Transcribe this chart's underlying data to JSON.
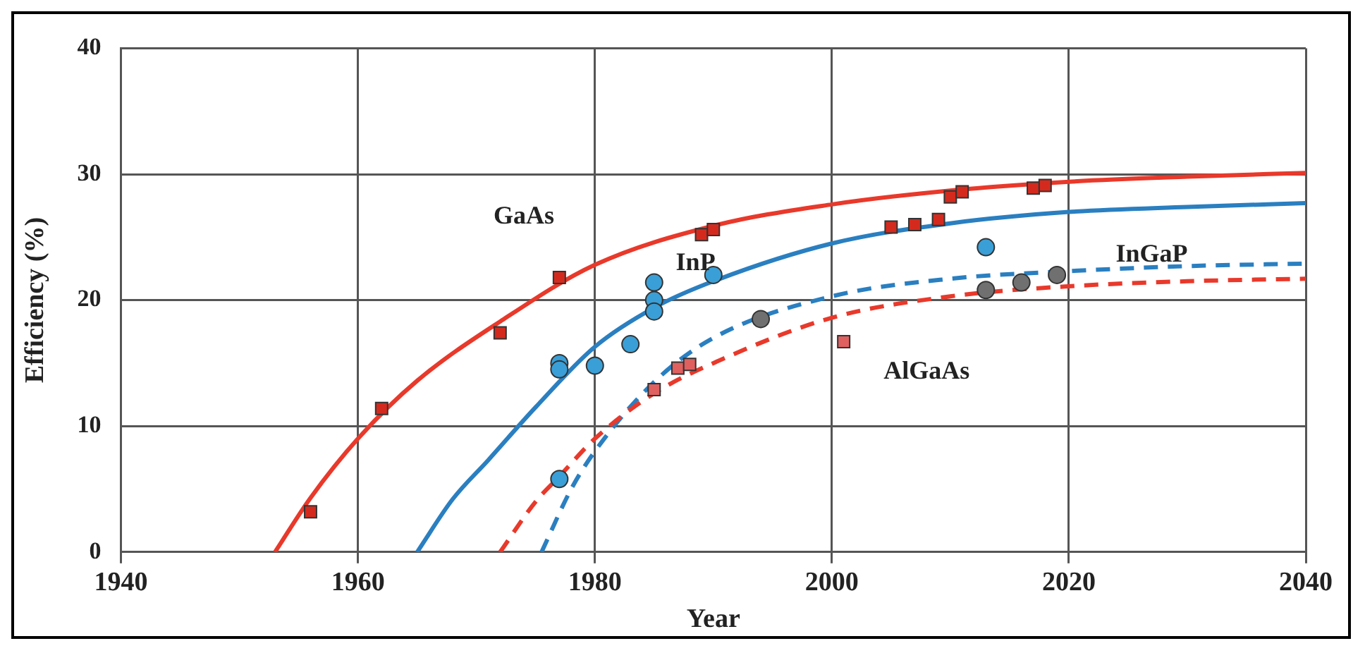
{
  "chart_data": {
    "type": "scatter",
    "xlabel": "Year",
    "ylabel": "Efficiency (%)",
    "xlim": [
      1940,
      2040
    ],
    "xticks": [
      1940,
      1960,
      1980,
      2000,
      2020,
      2040
    ],
    "ylim": [
      0,
      40
    ],
    "yticks": [
      0,
      10,
      20,
      30,
      40
    ],
    "grid": true,
    "legend": false,
    "series": [
      {
        "marker": "square",
        "color": "#d42a1e",
        "x": [
          1956,
          1962,
          1972,
          1977,
          1989,
          1990,
          2005,
          2007,
          2009,
          2010,
          2011,
          2017,
          2018
        ],
        "values": [
          3.2,
          11.4,
          17.4,
          21.8,
          25.2,
          25.6,
          25.8,
          26.0,
          26.4,
          28.2,
          28.6,
          28.9,
          29.1
        ]
      },
      {
        "marker": "circle",
        "color": "#3a9fd6",
        "x": [
          1977,
          1977,
          1977,
          1980,
          1983,
          1985,
          1985,
          1985,
          1990,
          2013
        ],
        "values": [
          5.8,
          15.0,
          14.5,
          14.8,
          16.5,
          21.4,
          20.0,
          19.1,
          22.0,
          24.2
        ]
      },
      {
        "marker": "square",
        "color": "#e06060",
        "x": [
          1985,
          1987,
          1988,
          2001
        ],
        "values": [
          12.9,
          14.6,
          14.9,
          16.7
        ]
      },
      {
        "marker": "circle",
        "color": "#707070",
        "x": [
          1994,
          2013,
          2016,
          2019
        ],
        "values": [
          18.5,
          20.8,
          21.4,
          22.0
        ]
      },
      {
        "type": "line",
        "name": "GaAs",
        "marker": "none",
        "line_style": "solid",
        "color": "#e8392b",
        "x": [
          1953,
          1956,
          1960,
          1965,
          1972,
          1980,
          1990,
          2000,
          2010,
          2020,
          2030,
          2040
        ],
        "values": [
          0,
          4.3,
          9,
          13.6,
          18.3,
          22.8,
          25.9,
          27.6,
          28.7,
          29.4,
          29.8,
          30.1
        ]
      },
      {
        "type": "line",
        "name": "InP",
        "marker": "none",
        "line_style": "solid",
        "color": "#2a7fc0",
        "x": [
          1965,
          1968,
          1971,
          1975,
          1980,
          1985,
          1990,
          2000,
          2010,
          2020,
          2030,
          2040
        ],
        "values": [
          0,
          4.2,
          7.3,
          11.5,
          16.3,
          19.4,
          21.5,
          24.5,
          26.1,
          27,
          27.4,
          27.7
        ]
      },
      {
        "type": "line",
        "name": "AlGaAs",
        "marker": "none",
        "line_style": "dashed",
        "color": "#e8392b",
        "x": [
          1972,
          1975,
          1977,
          1980,
          1985,
          1990,
          2000,
          2010,
          2020,
          2030,
          2040
        ],
        "values": [
          0,
          4,
          6,
          9,
          12.6,
          15,
          18.6,
          20.3,
          21.1,
          21.5,
          21.7
        ]
      },
      {
        "type": "line",
        "name": "InGaP",
        "marker": "none",
        "line_style": "dashed",
        "color": "#2a7fc0",
        "x": [
          1975.5,
          1978,
          1980,
          1985,
          1990,
          2000,
          2010,
          2020,
          2030,
          2040
        ],
        "values": [
          0,
          5,
          8,
          13.5,
          17,
          20.3,
          21.7,
          22.3,
          22.7,
          22.9
        ]
      }
    ]
  }
}
